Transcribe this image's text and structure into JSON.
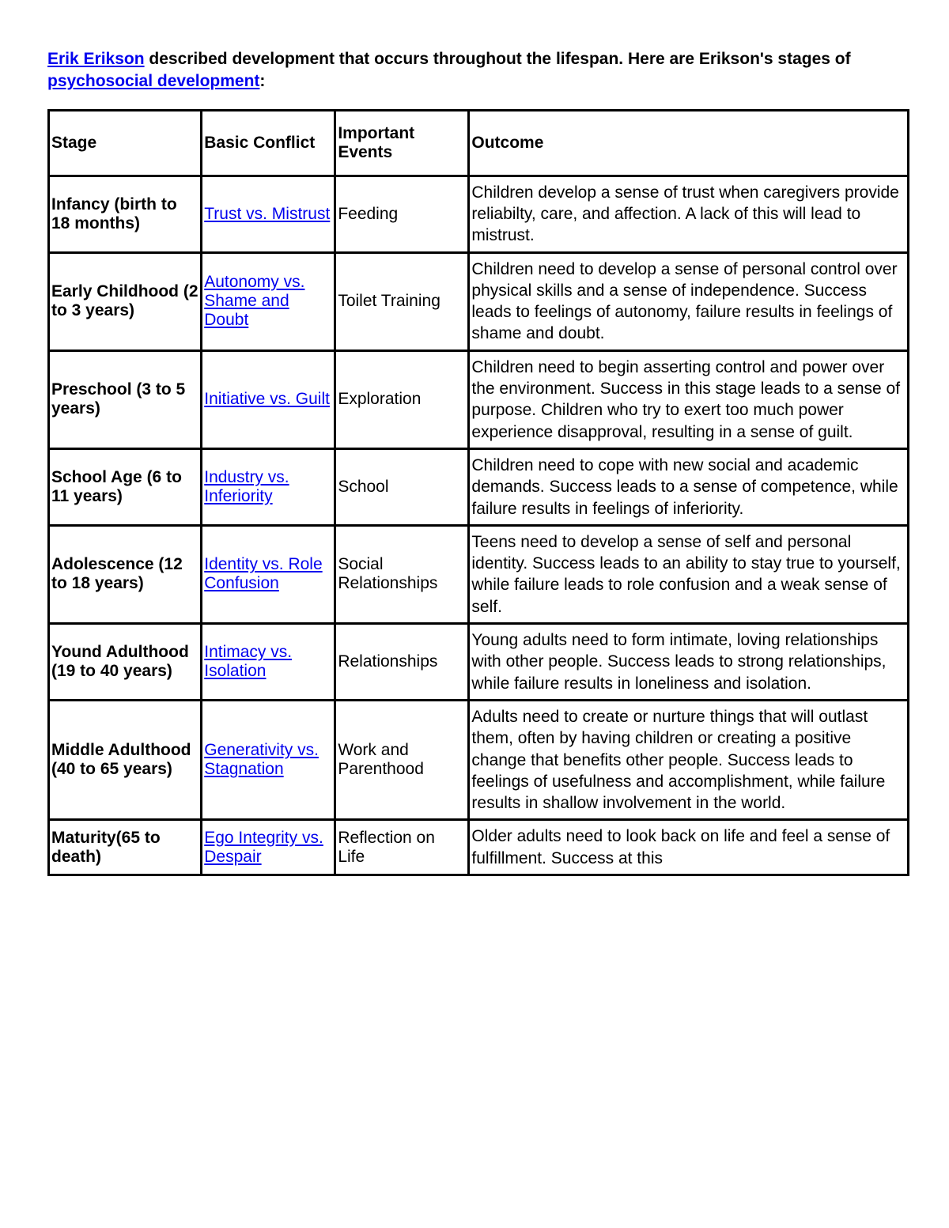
{
  "intro": {
    "link1_text": "Erik Erikson",
    "middle1": " described development that occurs throughout the lifespan. Here are Erikson's stages of ",
    "link2_text": "psychosocial development",
    "tail": ":"
  },
  "headers": {
    "stage": "Stage",
    "conflict": "Basic Conflict",
    "events": "Important Events",
    "outcome": "Outcome"
  },
  "rows": [
    {
      "stage": "Infancy (birth to 18 months)",
      "conflict": "Trust vs. Mistrust",
      "events": "Feeding",
      "outcome": "Children develop a sense of trust when caregivers provide reliabilty, care, and affection. A lack of this will lead to mistrust."
    },
    {
      "stage": "Early Childhood (2 to 3 years)",
      "conflict": "Autonomy vs. Shame and Doubt",
      "events": "Toilet Training",
      "outcome": "Children need to develop a sense of personal control over physical skills and a sense of independence. Success leads to feelings of autonomy, failure results in feelings of shame and doubt."
    },
    {
      "stage": "Preschool (3 to 5 years)",
      "conflict": "Initiative vs. Guilt",
      "events": "Exploration",
      "outcome": "Children need to begin asserting control and power over the environment. Success in this stage leads to a sense of purpose. Children who try to exert too much power experience disapproval, resulting in a sense of guilt."
    },
    {
      "stage": "School Age (6 to 11 years)",
      "conflict": "Industry vs. Inferiority",
      "events": "School",
      "outcome": "Children need to cope with new social and academic demands. Success leads to a sense of competence, while failure results in feelings of inferiority."
    },
    {
      "stage": "Adolescence (12 to 18 years)",
      "conflict": "Identity vs. Role Confusion",
      "events": "Social Relationships",
      "outcome": "Teens need to develop a sense of self and personal identity. Success leads to an ability to stay true to yourself, while failure leads to role confusion and a weak sense of self."
    },
    {
      "stage": "Yound Adulthood (19 to 40 years)",
      "conflict": "Intimacy vs. Isolation",
      "events": "Relationships",
      "outcome": "Young adults need to form intimate, loving relationships with other people. Success leads to strong relationships, while failure results in loneliness and isolation."
    },
    {
      "stage": "Middle Adulthood (40 to 65 years)",
      "conflict": "Generativity vs. Stagnation",
      "events": "Work and Parenthood",
      "outcome": "Adults need to create or nurture things that will outlast them, often by having children or creating a positive change that benefits other people. Success leads to feelings of usefulness and accomplishment, while failure results in shallow involvement in the world."
    },
    {
      "stage": "Maturity(65 to death)",
      "conflict": "Ego Integrity vs. Despair",
      "events": "Reflection on Life",
      "outcome": "Older adults need to look back on life and feel a sense of fulfillment. Success at this"
    }
  ]
}
